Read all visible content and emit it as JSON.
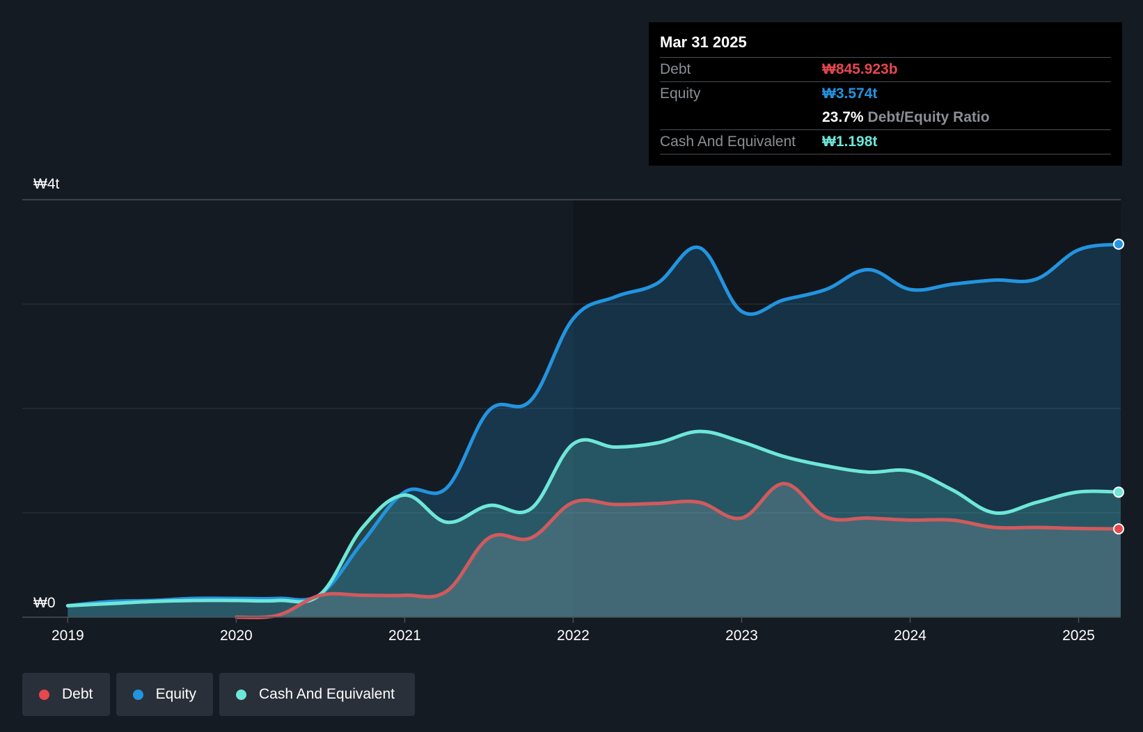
{
  "tooltip": {
    "date": "Mar 31 2025",
    "debt_label": "Debt",
    "debt_value": "₩845.923b",
    "equity_label": "Equity",
    "equity_value": "₩3.574t",
    "ratio_value": "23.7%",
    "ratio_label": "Debt/Equity Ratio",
    "cash_label": "Cash And Equivalent",
    "cash_value": "₩1.198t"
  },
  "legend": {
    "debt": "Debt",
    "equity": "Equity",
    "cash": "Cash And Equivalent"
  },
  "colors": {
    "debt": "#e5484d",
    "equity": "#2394df",
    "cash": "#6ee7d8",
    "background": "#151b23"
  },
  "chart_data": {
    "type": "area",
    "y_tick_labels": [
      "₩0",
      "₩4t"
    ],
    "ylim": [
      0,
      4
    ],
    "y_unit": "trillion KRW",
    "x_tick_labels": [
      "2019",
      "2020",
      "2021",
      "2022",
      "2023",
      "2024",
      "2025"
    ],
    "x_ticks": [
      2019,
      2020,
      2021,
      2022,
      2023,
      2024,
      2025
    ],
    "xlim": [
      2018.73,
      2025.25
    ],
    "grid": true,
    "legend_position": "bottom-left",
    "series": [
      {
        "name": "Debt",
        "x": [
          2020.0,
          2020.25,
          2020.5,
          2020.75,
          2021.0,
          2021.25,
          2021.5,
          2021.75,
          2022.0,
          2022.25,
          2022.5,
          2022.75,
          2023.0,
          2023.25,
          2023.5,
          2023.75,
          2024.0,
          2024.25,
          2024.5,
          2024.75,
          2025.0,
          2025.25
        ],
        "y": [
          0.0,
          0.02,
          0.21,
          0.21,
          0.21,
          0.25,
          0.76,
          0.76,
          1.1,
          1.08,
          1.09,
          1.1,
          0.95,
          1.28,
          0.96,
          0.95,
          0.93,
          0.93,
          0.86,
          0.86,
          0.85,
          0.846
        ]
      },
      {
        "name": "Equity",
        "x": [
          2019.0,
          2019.25,
          2019.5,
          2019.75,
          2020.0,
          2020.25,
          2020.5,
          2020.75,
          2021.0,
          2021.25,
          2021.5,
          2021.75,
          2022.0,
          2022.25,
          2022.5,
          2022.75,
          2023.0,
          2023.25,
          2023.5,
          2023.75,
          2024.0,
          2024.25,
          2024.5,
          2024.75,
          2025.0,
          2025.25
        ],
        "y": [
          0.11,
          0.15,
          0.16,
          0.18,
          0.18,
          0.18,
          0.22,
          0.72,
          1.2,
          1.24,
          1.98,
          2.08,
          2.86,
          3.07,
          3.2,
          3.54,
          2.93,
          3.04,
          3.14,
          3.33,
          3.14,
          3.19,
          3.23,
          3.24,
          3.52,
          3.574
        ]
      },
      {
        "name": "Cash And Equivalent",
        "x": [
          2019.0,
          2019.25,
          2019.5,
          2019.75,
          2020.0,
          2020.25,
          2020.5,
          2020.75,
          2021.0,
          2021.25,
          2021.5,
          2021.75,
          2022.0,
          2022.25,
          2022.5,
          2022.75,
          2023.0,
          2023.25,
          2023.5,
          2023.75,
          2024.0,
          2024.25,
          2024.5,
          2024.75,
          2025.0,
          2025.25
        ],
        "y": [
          0.11,
          0.13,
          0.15,
          0.16,
          0.16,
          0.16,
          0.22,
          0.86,
          1.17,
          0.91,
          1.07,
          1.04,
          1.66,
          1.63,
          1.67,
          1.78,
          1.68,
          1.54,
          1.45,
          1.39,
          1.4,
          1.22,
          1.0,
          1.1,
          1.2,
          1.198
        ]
      }
    ]
  }
}
